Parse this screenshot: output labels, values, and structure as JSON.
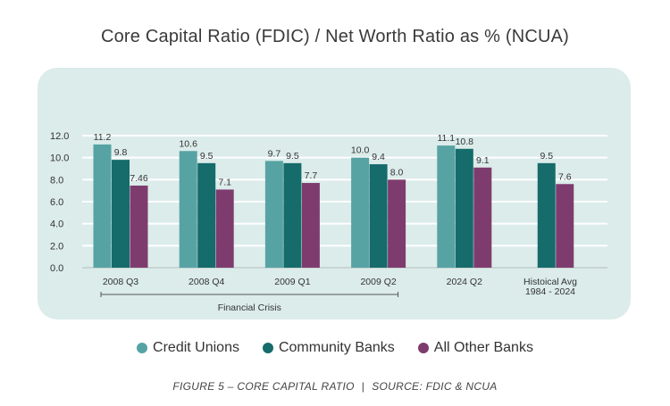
{
  "chart_data": {
    "type": "bar",
    "title": "Core Capital Ratio (FDIC) / Net Worth Ratio as % (NCUA)",
    "categories": [
      "2008 Q3",
      "2008 Q4",
      "2009 Q1",
      "2009 Q2",
      "2024 Q2",
      "Histoical Avg\n1984 - 2024"
    ],
    "series": [
      {
        "name": "Credit Unions",
        "color": "#57a3a4",
        "values": [
          11.2,
          10.6,
          9.7,
          10.0,
          11.1,
          null
        ],
        "labels": [
          "11.2",
          "10.6",
          "9.7",
          "10.0",
          "11.1",
          null
        ]
      },
      {
        "name": "Community Banks",
        "color": "#166b6b",
        "values": [
          9.8,
          9.5,
          9.5,
          9.4,
          10.8,
          9.5
        ],
        "labels": [
          "9.8",
          "9.5",
          "9.5",
          "9.4",
          "10.8",
          "9.5"
        ]
      },
      {
        "name": "All Other Banks",
        "color": "#7e3c6e",
        "values": [
          7.46,
          7.1,
          7.7,
          8.0,
          9.1,
          7.6
        ],
        "labels": [
          "7.46",
          "7.1",
          "7.7",
          "8.0",
          "9.1",
          "7.6"
        ]
      }
    ],
    "yticks": [
      "0.0",
      "2.0",
      "4.0",
      "6.0",
      "8.0",
      "10.0",
      "12.0"
    ],
    "ylim": [
      0,
      12
    ],
    "grid": true,
    "bracket_label": "Financial Crisis",
    "bracket_span": [
      "2008 Q3",
      "2009 Q2"
    ],
    "xlabel": "",
    "ylabel": ""
  },
  "legend": {
    "items": [
      {
        "label": "Credit Unions",
        "color": "#57a3a4"
      },
      {
        "label": "Community Banks",
        "color": "#166b6b"
      },
      {
        "label": "All Other Banks",
        "color": "#7e3c6e"
      }
    ]
  },
  "caption": {
    "figure": "FIGURE 5 – CORE CAPITAL RATIO",
    "source": "SOURCE: FDIC & NCUA"
  }
}
